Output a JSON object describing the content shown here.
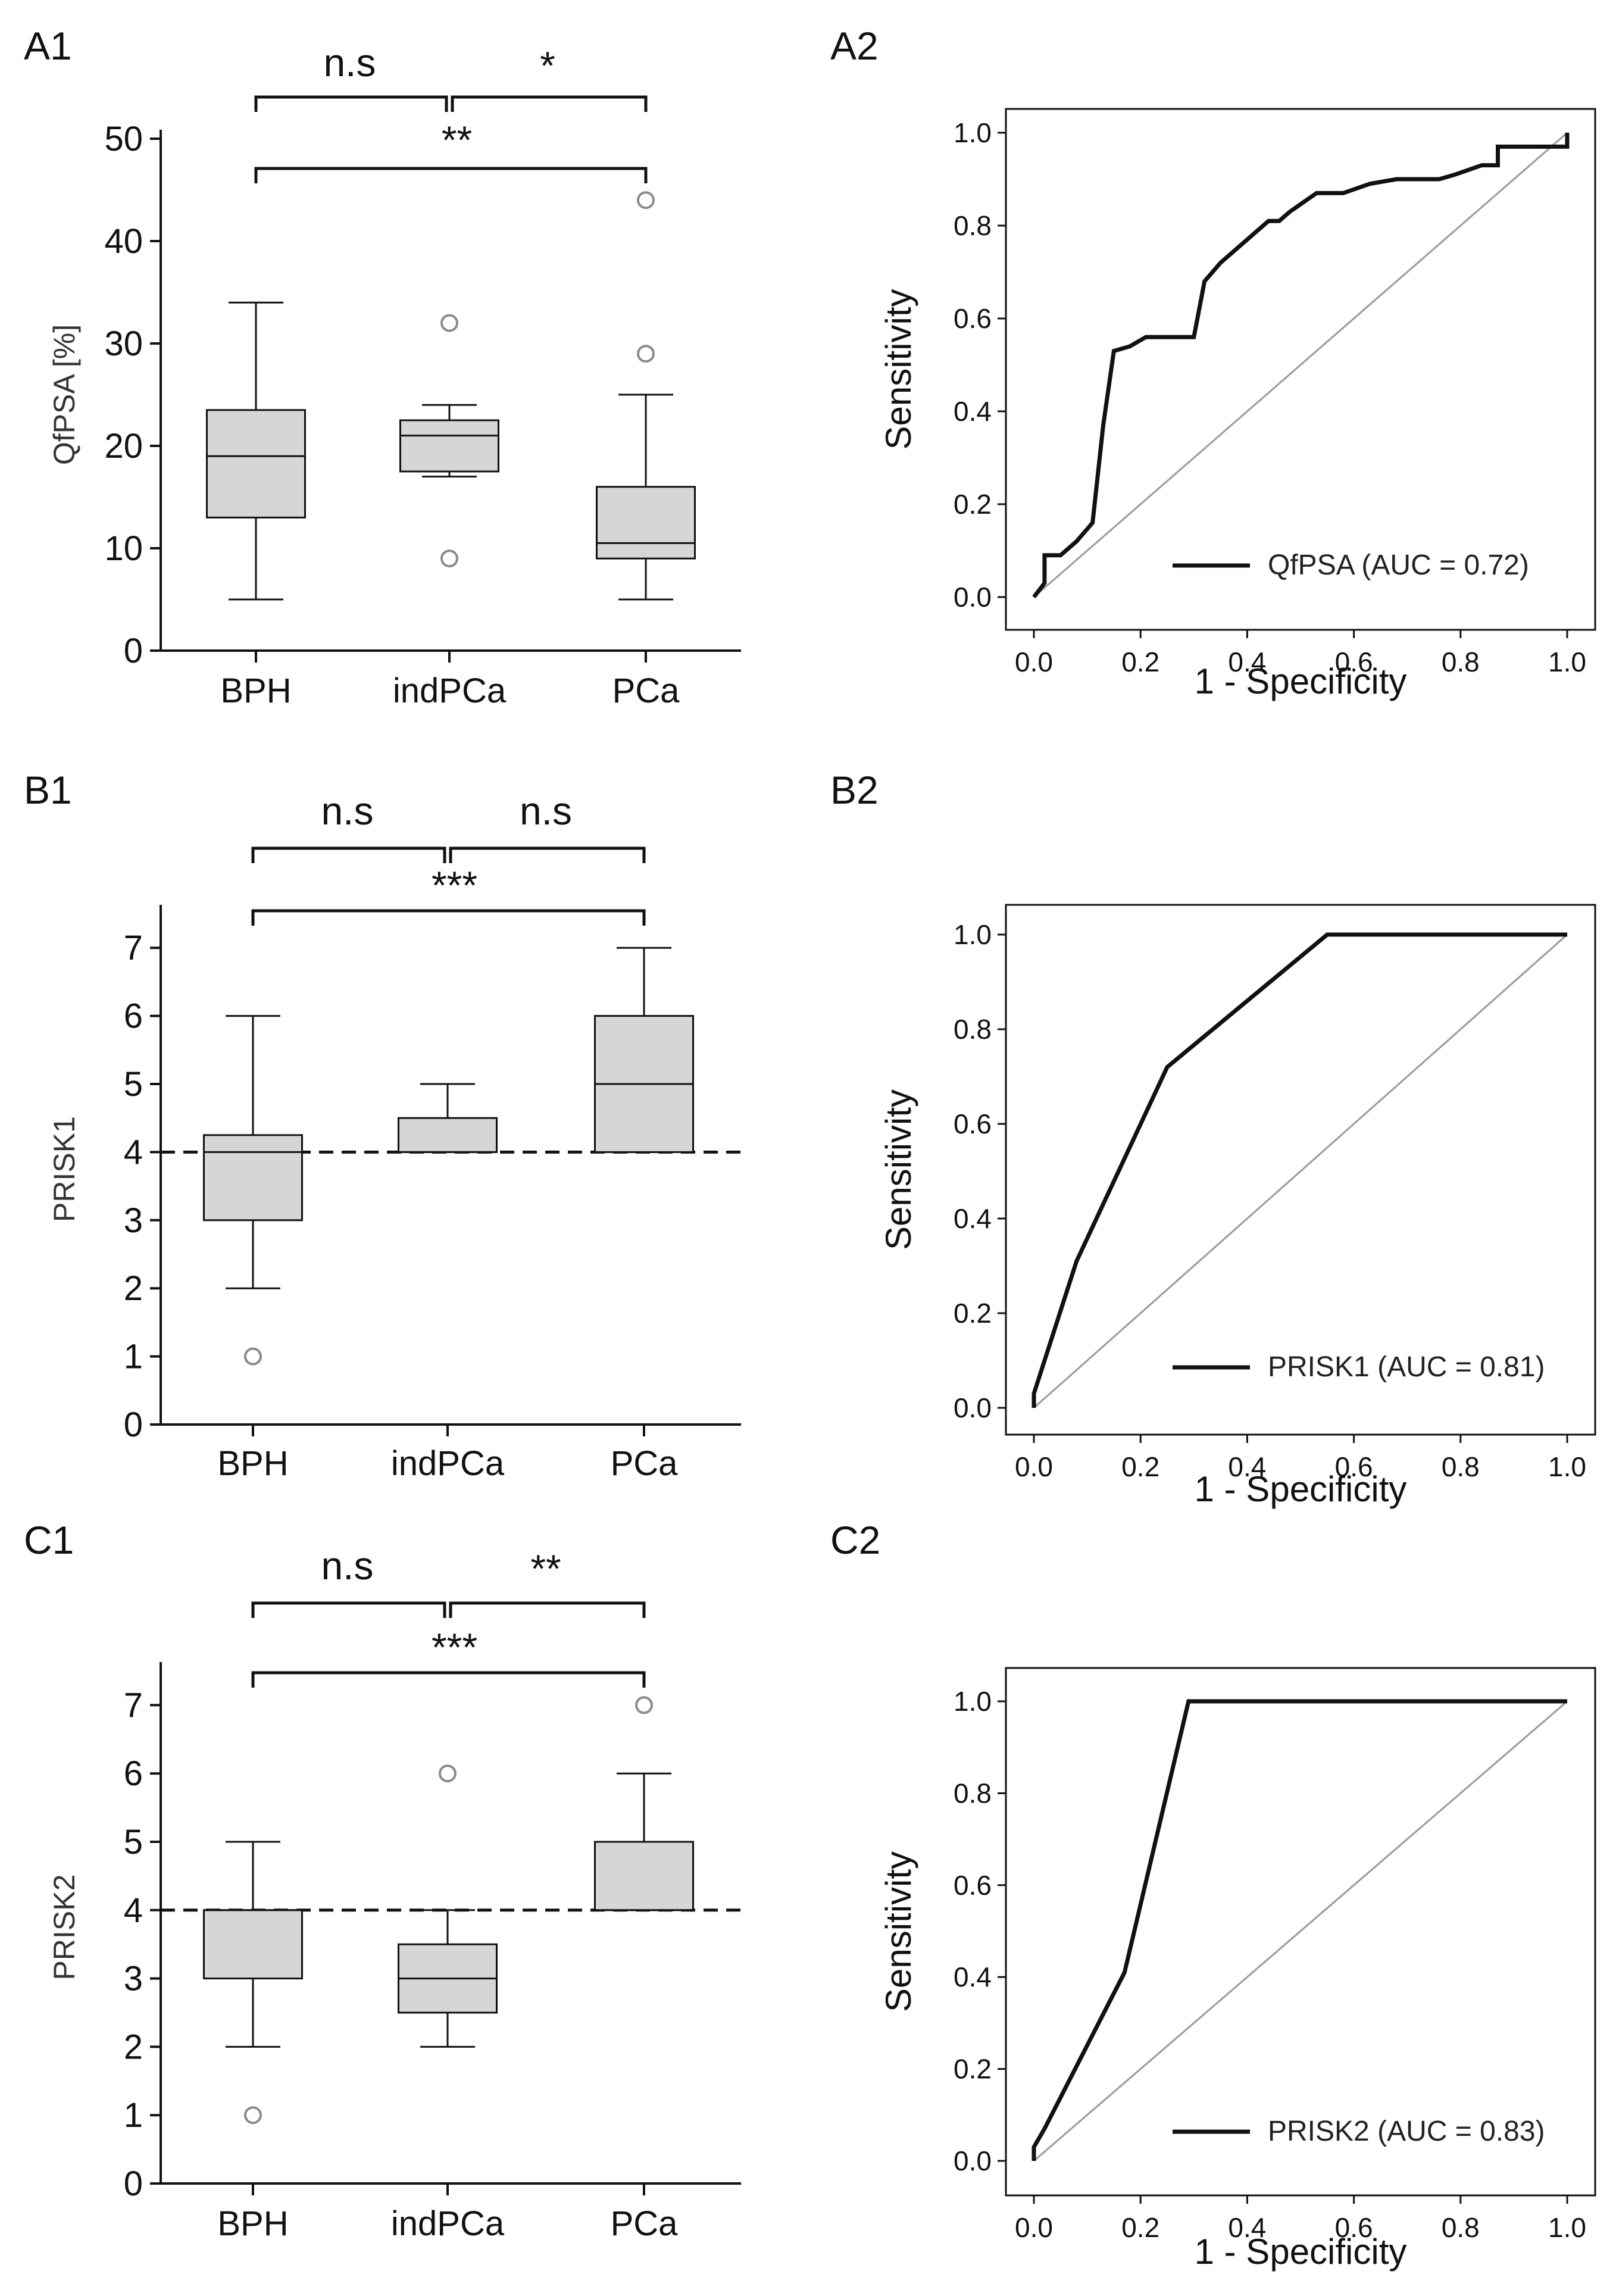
{
  "chart_data": [
    {
      "id": "A1",
      "panel_label": "A1",
      "type": "box",
      "ylabel": "QfPSA [%]",
      "ylim": [
        0,
        50
      ],
      "yticks": [
        "0",
        "10",
        "20",
        "30",
        "40",
        "50"
      ],
      "categories": [
        "BPH",
        "indPCa",
        "PCa"
      ],
      "boxes": [
        {
          "whisker_low": 5,
          "q1": 13,
          "median": 19,
          "q3": 23.5,
          "whisker_high": 34,
          "outliers": []
        },
        {
          "whisker_low": 17,
          "q1": 17.5,
          "median": 21,
          "q3": 22.5,
          "whisker_high": 24,
          "outliers": [
            32,
            9
          ]
        },
        {
          "whisker_low": 5,
          "q1": 9,
          "median": 10.5,
          "q3": 16,
          "whisker_high": 25,
          "outliers": [
            44,
            29
          ]
        }
      ],
      "significance": [
        {
          "from": "BPH",
          "to": "indPCa",
          "label": "n.s"
        },
        {
          "from": "indPCa",
          "to": "PCa",
          "label": "*"
        },
        {
          "from": "BPH",
          "to": "PCa",
          "label": "**"
        }
      ]
    },
    {
      "id": "A2",
      "panel_label": "A2",
      "type": "line",
      "xlabel": "1 - Specificity",
      "ylabel": "Sensitivity",
      "xlim": [
        0,
        1
      ],
      "ylim": [
        0,
        1
      ],
      "xticks": [
        "0.0",
        "0.2",
        "0.4",
        "0.6",
        "0.8",
        "1.0"
      ],
      "yticks": [
        "0.0",
        "0.2",
        "0.4",
        "0.6",
        "0.8",
        "1.0"
      ],
      "legend": "QfPSA (AUC = 0.72)",
      "x": [
        0,
        0.02,
        0.02,
        0.03,
        0.05,
        0.08,
        0.11,
        0.13,
        0.15,
        0.18,
        0.21,
        0.26,
        0.3,
        0.32,
        0.35,
        0.38,
        0.42,
        0.44,
        0.46,
        0.48,
        0.53,
        0.58,
        0.63,
        0.68,
        0.73,
        0.76,
        0.79,
        0.84,
        0.87,
        0.87,
        0.91,
        0.95,
        1.0,
        1.0
      ],
      "y": [
        0,
        0.03,
        0.09,
        0.09,
        0.09,
        0.12,
        0.16,
        0.37,
        0.53,
        0.54,
        0.56,
        0.56,
        0.56,
        0.68,
        0.72,
        0.75,
        0.79,
        0.81,
        0.81,
        0.83,
        0.87,
        0.87,
        0.89,
        0.9,
        0.9,
        0.9,
        0.91,
        0.93,
        0.93,
        0.97,
        0.97,
        0.97,
        0.97,
        1.0
      ],
      "reference": [
        [
          0,
          0
        ],
        [
          1,
          1
        ]
      ]
    },
    {
      "id": "B1",
      "panel_label": "B1",
      "type": "box",
      "ylabel": "PRISK1",
      "ylim": [
        0,
        7.5
      ],
      "yticks": [
        "0",
        "1",
        "2",
        "3",
        "4",
        "5",
        "6",
        "7"
      ],
      "threshold": 4,
      "categories": [
        "BPH",
        "indPCa",
        "PCa"
      ],
      "boxes": [
        {
          "whisker_low": 2,
          "q1": 3,
          "median": 4,
          "q3": 4.25,
          "whisker_high": 6,
          "outliers": [
            1
          ]
        },
        {
          "whisker_low": 4,
          "q1": 4,
          "median": 4,
          "q3": 4.5,
          "whisker_high": 5,
          "outliers": []
        },
        {
          "whisker_low": 4,
          "q1": 4,
          "median": 5,
          "q3": 6,
          "whisker_high": 7,
          "outliers": []
        }
      ],
      "significance": [
        {
          "from": "BPH",
          "to": "indPCa",
          "label": "n.s"
        },
        {
          "from": "indPCa",
          "to": "PCa",
          "label": "n.s"
        },
        {
          "from": "BPH",
          "to": "PCa",
          "label": "***"
        }
      ]
    },
    {
      "id": "B2",
      "panel_label": "B2",
      "type": "line",
      "xlabel": "1 - Specificity",
      "ylabel": "Sensitivity",
      "xlim": [
        0,
        1
      ],
      "ylim": [
        0,
        1
      ],
      "xticks": [
        "0.0",
        "0.2",
        "0.4",
        "0.6",
        "0.8",
        "1.0"
      ],
      "yticks": [
        "0.0",
        "0.2",
        "0.4",
        "0.6",
        "0.8",
        "1.0"
      ],
      "legend": "PRISK1 (AUC = 0.81)",
      "x": [
        0,
        0,
        0.08,
        0.25,
        0.55,
        1.0
      ],
      "y": [
        0,
        0.03,
        0.31,
        0.72,
        1.0,
        1.0
      ],
      "reference": [
        [
          0,
          0
        ],
        [
          1,
          1
        ]
      ]
    },
    {
      "id": "C1",
      "panel_label": "C1",
      "type": "box",
      "ylabel": "PRISK2",
      "ylim": [
        0,
        7.5
      ],
      "yticks": [
        "0",
        "1",
        "2",
        "3",
        "4",
        "5",
        "6",
        "7"
      ],
      "threshold": 4,
      "categories": [
        "BPH",
        "indPCa",
        "PCa"
      ],
      "boxes": [
        {
          "whisker_low": 2,
          "q1": 3,
          "median": 4,
          "q3": 4,
          "whisker_high": 5,
          "outliers": [
            1
          ]
        },
        {
          "whisker_low": 2,
          "q1": 2.5,
          "median": 3,
          "q3": 3.5,
          "whisker_high": 4,
          "outliers": [
            6
          ]
        },
        {
          "whisker_low": 4,
          "q1": 4,
          "median": 4,
          "q3": 5,
          "whisker_high": 6,
          "outliers": [
            7
          ]
        }
      ],
      "significance": [
        {
          "from": "BPH",
          "to": "indPCa",
          "label": "n.s"
        },
        {
          "from": "indPCa",
          "to": "PCa",
          "label": "**"
        },
        {
          "from": "BPH",
          "to": "PCa",
          "label": "***"
        }
      ]
    },
    {
      "id": "C2",
      "panel_label": "C2",
      "type": "line",
      "xlabel": "1 - Specificity",
      "ylabel": "Sensitivity",
      "xlim": [
        0,
        1
      ],
      "ylim": [
        0,
        1
      ],
      "xticks": [
        "0.0",
        "0.2",
        "0.4",
        "0.6",
        "0.8",
        "1.0"
      ],
      "yticks": [
        "0.0",
        "0.2",
        "0.4",
        "0.6",
        "0.8",
        "1.0"
      ],
      "legend": "PRISK2 (AUC = 0.83)",
      "x": [
        0,
        0,
        0.02,
        0.17,
        0.29,
        1.0
      ],
      "y": [
        0,
        0.03,
        0.07,
        0.41,
        1.0,
        1.0
      ],
      "reference": [
        [
          0,
          0
        ],
        [
          1,
          1
        ]
      ]
    }
  ]
}
